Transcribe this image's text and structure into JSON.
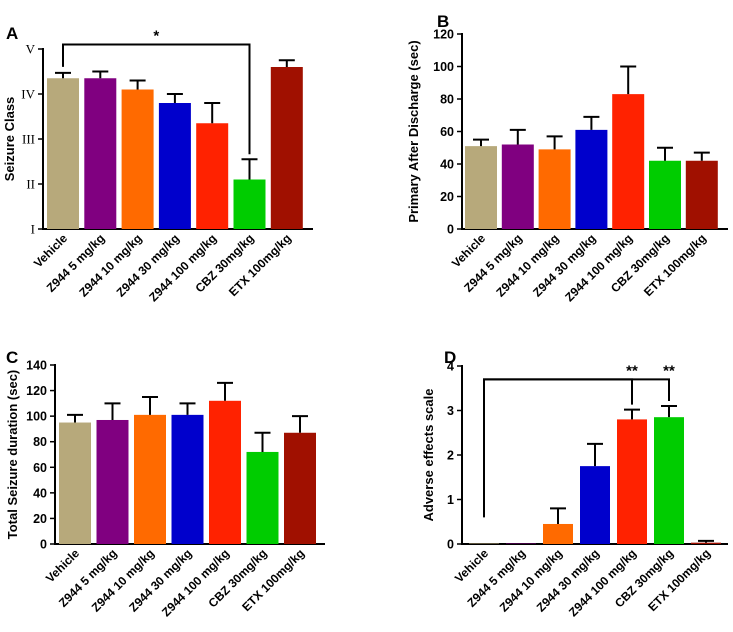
{
  "chart_data": [
    {
      "panel": "A",
      "type": "bar",
      "ylabel": "Seizure Class",
      "ylim": [
        1,
        5
      ],
      "yticks": [
        {
          "v": 1,
          "label": "I"
        },
        {
          "v": 2,
          "label": "II"
        },
        {
          "v": 3,
          "label": "III"
        },
        {
          "v": 4,
          "label": "IV"
        },
        {
          "v": 5,
          "label": "V"
        }
      ],
      "categories": [
        "Vehicle",
        "Z944 5 mg/kg",
        "Z944 10 mg/kg",
        "Z944 30 mg/kg",
        "Z944 100 mg/kg",
        "CBZ 30mg/kg",
        "ETX 100mg/kg"
      ],
      "values": [
        4.35,
        4.35,
        4.1,
        3.8,
        3.35,
        2.1,
        4.6
      ],
      "errors": [
        0.12,
        0.15,
        0.2,
        0.2,
        0.45,
        0.45,
        0.15
      ],
      "colors": [
        "#b7a97b",
        "#800080",
        "#ff6a00",
        "#0000cc",
        "#ff2200",
        "#00cc00",
        "#a01000"
      ],
      "significance": [
        {
          "from": 0,
          "to": 5,
          "label": "*",
          "level": 5.1
        }
      ]
    },
    {
      "panel": "B",
      "type": "bar",
      "ylabel": "Primary After Discharge (sec)",
      "ylim": [
        0,
        120
      ],
      "yticks": [
        {
          "v": 0,
          "label": "0"
        },
        {
          "v": 20,
          "label": "20"
        },
        {
          "v": 40,
          "label": "40"
        },
        {
          "v": 60,
          "label": "60"
        },
        {
          "v": 80,
          "label": "80"
        },
        {
          "v": 100,
          "label": "100"
        },
        {
          "v": 120,
          "label": "120"
        }
      ],
      "categories": [
        "Vehicle",
        "Z944 5 mg/kg",
        "Z944 10 mg/kg",
        "Z944 30 mg/kg",
        "Z944 100 mg/kg",
        "CBZ 30mg/kg",
        "ETX 100mg/kg"
      ],
      "values": [
        51,
        52,
        49,
        61,
        83,
        42,
        42
      ],
      "errors": [
        4,
        9,
        8,
        8,
        17,
        8,
        5
      ],
      "colors": [
        "#b7a97b",
        "#800080",
        "#ff6a00",
        "#0000cc",
        "#ff2200",
        "#00cc00",
        "#a01000"
      ],
      "significance": []
    },
    {
      "panel": "C",
      "type": "bar",
      "ylabel": "Total Seizure duration (sec)",
      "ylim": [
        0,
        140
      ],
      "yticks": [
        {
          "v": 0,
          "label": "0"
        },
        {
          "v": 20,
          "label": "20"
        },
        {
          "v": 40,
          "label": "40"
        },
        {
          "v": 60,
          "label": "60"
        },
        {
          "v": 80,
          "label": "80"
        },
        {
          "v": 100,
          "label": "100"
        },
        {
          "v": 120,
          "label": "120"
        },
        {
          "v": 140,
          "label": "140"
        }
      ],
      "categories": [
        "Vehicle",
        "Z944 5 mg/kg",
        "Z944 10 mg/kg",
        "Z944 30 mg/kg",
        "Z944 100 mg/kg",
        "CBZ 30mg/kg",
        "ETX 100mg/kg"
      ],
      "values": [
        95,
        97,
        101,
        101,
        112,
        72,
        87
      ],
      "errors": [
        6,
        13,
        14,
        9,
        14,
        15,
        13
      ],
      "colors": [
        "#b7a97b",
        "#800080",
        "#ff6a00",
        "#0000cc",
        "#ff2200",
        "#00cc00",
        "#a01000"
      ],
      "significance": []
    },
    {
      "panel": "D",
      "type": "bar",
      "ylabel": "Adverse effects scale",
      "ylim": [
        0,
        4
      ],
      "yticks": [
        {
          "v": 0,
          "label": "0"
        },
        {
          "v": 1,
          "label": "1"
        },
        {
          "v": 2,
          "label": "2"
        },
        {
          "v": 3,
          "label": "3"
        },
        {
          "v": 4,
          "label": "4"
        }
      ],
      "categories": [
        "Vehicle",
        "Z944 5 mg/kg",
        "Z944 10 mg/kg",
        "Z944 30 mg/kg",
        "Z944 100 mg/kg",
        "CBZ 30mg/kg",
        "ETX 100mg/kg"
      ],
      "values": [
        0,
        0,
        0.45,
        1.75,
        2.8,
        2.85,
        0.03
      ],
      "errors": [
        0,
        0,
        0.35,
        0.5,
        0.22,
        0.25,
        0.04
      ],
      "colors": [
        "#b7a97b",
        "#800080",
        "#ff6a00",
        "#0000cc",
        "#ff2200",
        "#00cc00",
        "#a01000"
      ],
      "significance": [
        {
          "from": 0,
          "to": 4,
          "label": "**",
          "level": 3.7
        },
        {
          "from": 0,
          "to": 5,
          "label": "**",
          "level": 3.7
        }
      ]
    }
  ]
}
